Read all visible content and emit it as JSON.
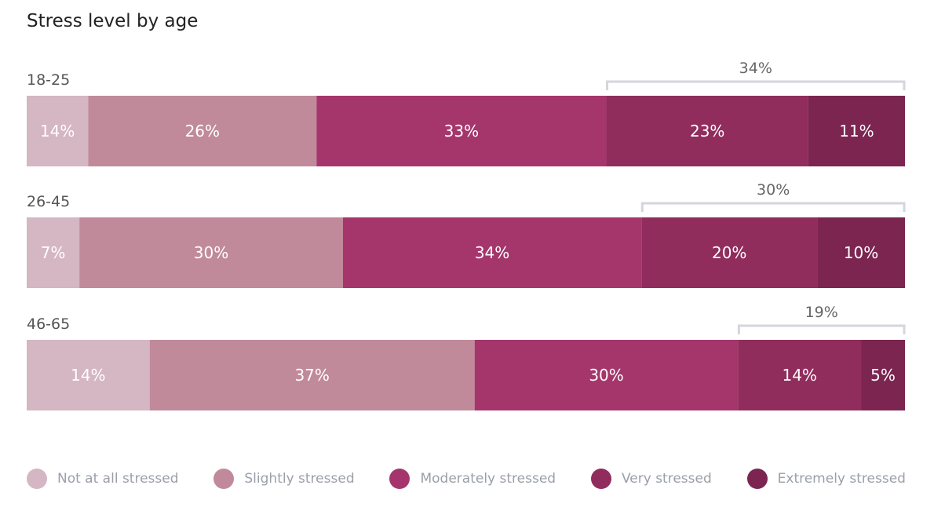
{
  "chart_data": {
    "type": "bar",
    "stacked": true,
    "orientation": "horizontal",
    "title": "Stress level by age",
    "categories": [
      "18-25",
      "26-45",
      "46-65"
    ],
    "series": [
      {
        "name": "Not at all stressed",
        "color": "#d5b6c3",
        "values": [
          14,
          7,
          14
        ]
      },
      {
        "name": "Slightly stressed",
        "color": "#c08a9b",
        "values": [
          26,
          30,
          37
        ]
      },
      {
        "name": "Moderately stressed",
        "color": "#a5366c",
        "values": [
          33,
          34,
          30
        ]
      },
      {
        "name": "Very stressed",
        "color": "#902d5c",
        "values": [
          23,
          20,
          14
        ]
      },
      {
        "name": "Extremely stressed",
        "color": "#7b2550",
        "values": [
          11,
          10,
          5
        ]
      }
    ],
    "bracket_totals": [
      "34%",
      "30%",
      "19%"
    ],
    "legend_position": "bottom"
  }
}
